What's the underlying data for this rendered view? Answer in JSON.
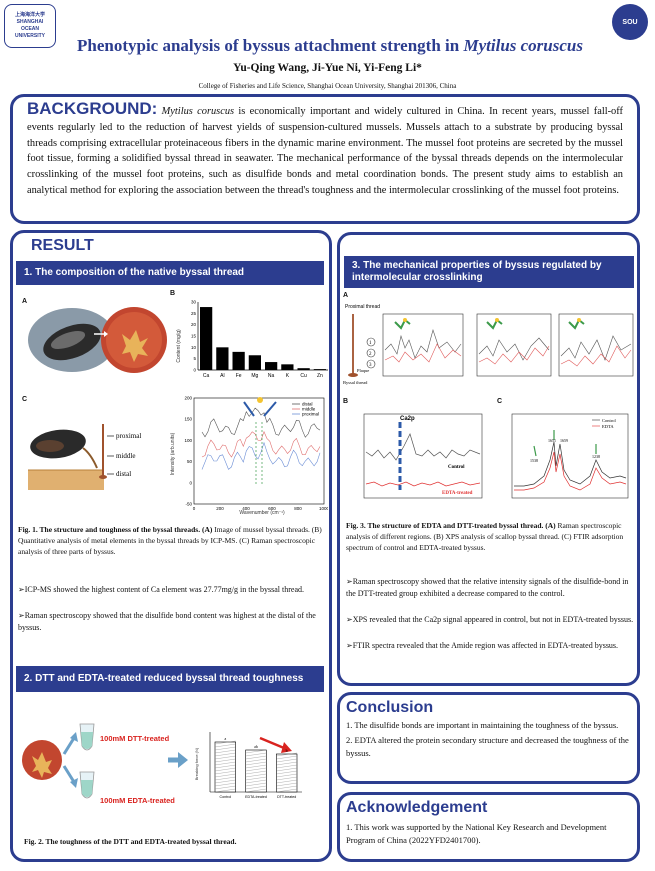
{
  "header": {
    "title_main": "Phenotypic analysis of byssus attachment strength in ",
    "title_species": "Mytilus coruscus",
    "authors": "Yu-Qing Wang, Ji-Yue Ni, Yi-Feng Li*",
    "affiliation": "College of Fisheries and Life Science, Shanghai Ocean University, Shanghai 201306, China",
    "left_logo_text": "上海海洋大学 SHANGHAI OCEAN UNIVERSITY",
    "right_logo_text": "SOU"
  },
  "background": {
    "heading": "BACKGROUND:",
    "species": "Mytilus coruscus",
    "text": " is economically important and widely cultured in China. In recent years, mussel fall-off events regularly led to the reduction of harvest yields of suspension-cultured mussels. Mussels attach to a substrate by producing byssal threads comprising extracellular proteinaceous fibers in the dynamic marine environment. The mussel foot proteins are secreted by the mussel foot tissue, forming a solidified byssal thread in seawater. The mechanical performance of the byssal threads depends on the intermolecular crosslinking of the mussel foot proteins, such as disulfide bonds and metal coordination bonds. The present study aims to establish an analytical method for exploring the association between the thread's toughness and the intermolecular crosslinking of the mussel foot proteins."
  },
  "result": {
    "heading": "RESULT",
    "sec1_title": "1. The composition of the native byssal thread",
    "panel_a": "A",
    "panel_b": "B",
    "panel_c": "C",
    "byssus_labels": [
      "proximal",
      "middle",
      "distal"
    ],
    "fig1_caption_bold": "Fig. 1. The structure and toughness of the byssal threads. (A) ",
    "fig1_caption": "Image of mussel byssal threads. (B) Quantitative analysis of metal elements in the byssal threads by ICP-MS. (C) Raman spectroscopic analysis of three parts of byssus.",
    "note1": "➢ICP-MS showed the highest content of Ca element was 27.77mg/g in the byssal thread.",
    "note2": "➢Raman spectroscopy showed that the disulfide bond content was highest at the distal of the byssus.",
    "sec2_title": "2. DTT and EDTA-treated reduced byssal thread toughness",
    "dtt_label": "100mM DTT-treated",
    "edta_label": "100mM EDTA-treated",
    "fig2_caption": "Fig. 2. The toughness of the DTT and EDTA-treated byssal thread."
  },
  "section3": {
    "title": "3. The mechanical properties of  byssus regulated by intermolecular crosslinking",
    "panel_a": "A",
    "panel_b": "B",
    "panel_c": "C",
    "proximal_label": "Proximal thread",
    "plaque_label": "Plaque",
    "byssal_label": "Byssal thread",
    "region_nums": [
      "1",
      "2",
      "3"
    ],
    "xps_label": "Ca2p",
    "xps_control": "Control",
    "xps_edta": "EDTA-treated",
    "ftir_legend": [
      "Control",
      "EDTA"
    ],
    "ftir_peaks": [
      "1651",
      "1659",
      "1538",
      "1238"
    ],
    "fig3_caption_bold": "Fig. 3. The structure of EDTA and DTT-treated byssal thread. (A) ",
    "fig3_caption": "Raman spectroscopic analysis of different regions. (B) XPS analysis of scallop byssal thread. (C) FTIR adsorption spectrum of control and EDTA-treated byssus.",
    "note1": "➢Raman spectroscopy showed that the relative intensity signals of the disulfide-bond in the DTT-treated group exhibited a decrease compared to the control.",
    "note2": "➢XPS revealed that the Ca2p signal appeared in control, but not in EDTA-treated byssus.",
    "note3": "➢FTIR spectra revealed that the Amide region was affected in EDTA-treated byssus."
  },
  "conclusion": {
    "heading": "Conclusion",
    "item1": "1. The disulfide bonds are important in maintaining the toughness of the byssus.",
    "item2": "2. EDTA altered the protein secondary structure and decreased the toughness of the byssus."
  },
  "acknowledgement": {
    "heading": "Acknowledgement",
    "text": "1. This work was supported by the National Key Research and Development Program of China (2022YFD2401700)."
  },
  "colors": {
    "accent": "#2c3d8f",
    "red": "#d9231f",
    "green": "#2e8b57"
  },
  "chart_data": [
    {
      "type": "bar",
      "ylabel": "Content (mg/g)",
      "categories": [
        "Ca",
        "Al",
        "Fe",
        "Mg",
        "Na",
        "K",
        "Cu",
        "Zn"
      ],
      "values": [
        27.77,
        10,
        8,
        6.5,
        3.5,
        2.5,
        0.8,
        0.4
      ],
      "ylim": [
        0,
        30
      ],
      "yticks": [
        "0",
        "5",
        "10",
        "15",
        "20",
        "25",
        "30"
      ]
    },
    {
      "type": "line",
      "xlabel": "Wavenumber (cm⁻¹)",
      "ylabel": "Intensity (arb.units)",
      "series": [
        {
          "name": "distal"
        },
        {
          "name": "middle"
        },
        {
          "name": "proximal"
        }
      ],
      "xticks": [
        "0",
        "200",
        "400",
        "600",
        "800",
        "1000"
      ],
      "yticks": [
        "-50",
        "0",
        "50",
        "100",
        "150",
        "200"
      ]
    },
    {
      "type": "bar",
      "ylabel": "Breaking force (N)",
      "categories": [
        "Control",
        "EDTA-treated",
        "DTT-treated"
      ],
      "values": [
        1.0,
        0.84,
        0.76
      ],
      "ylim": [
        0,
        1.2
      ],
      "letters": [
        "a",
        "ab",
        "b"
      ]
    }
  ]
}
